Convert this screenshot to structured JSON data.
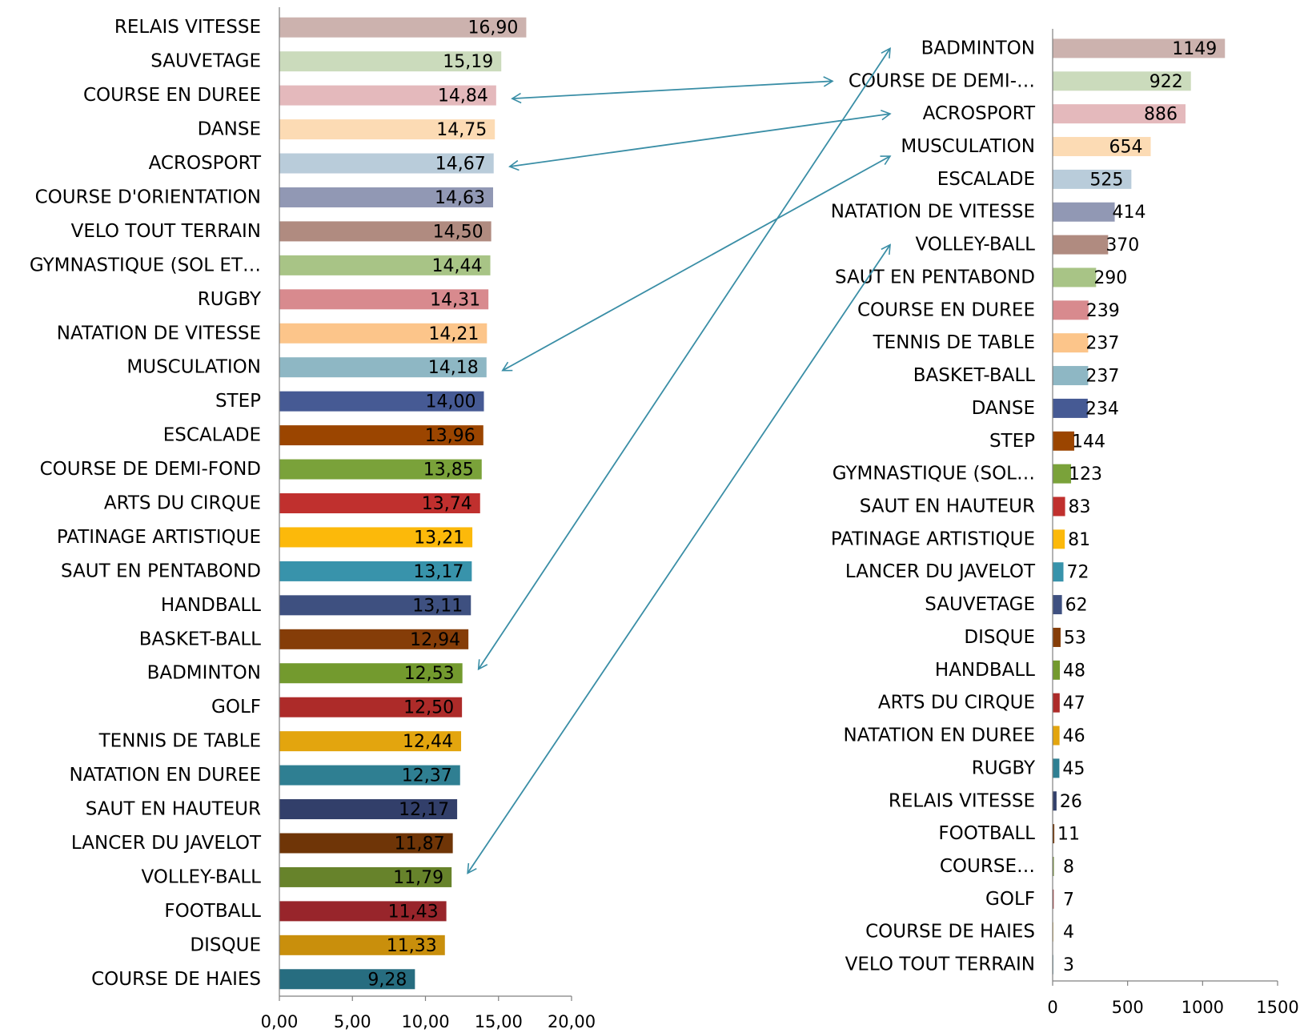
{
  "chart_data": [
    {
      "type": "bar",
      "orientation": "horizontal",
      "categories": [
        "RELAIS VITESSE",
        "SAUVETAGE",
        "COURSE EN DUREE",
        "DANSE",
        "ACROSPORT",
        "COURSE D'ORIENTATION",
        "VELO TOUT TERRAIN",
        "GYMNASTIQUE (SOL ET…",
        "RUGBY",
        "NATATION DE VITESSE",
        "MUSCULATION",
        "STEP",
        "ESCALADE",
        "COURSE DE DEMI-FOND",
        "ARTS DU CIRQUE",
        "PATINAGE ARTISTIQUE",
        "SAUT EN PENTABOND",
        "HANDBALL",
        "BASKET-BALL",
        "BADMINTON",
        "GOLF",
        "TENNIS DE TABLE",
        "NATATION EN DUREE",
        "SAUT EN HAUTEUR",
        "LANCER DU JAVELOT",
        "VOLLEY-BALL",
        "FOOTBALL",
        "DISQUE",
        "COURSE DE HAIES"
      ],
      "values": [
        16.9,
        15.19,
        14.84,
        14.75,
        14.67,
        14.63,
        14.5,
        14.44,
        14.31,
        14.21,
        14.18,
        14.0,
        13.96,
        13.85,
        13.74,
        13.21,
        13.17,
        13.11,
        12.94,
        12.53,
        12.5,
        12.44,
        12.37,
        12.17,
        11.87,
        11.79,
        11.43,
        11.33,
        9.28
      ],
      "data_labels": [
        "16,90",
        "15,19",
        "14,84",
        "14,75",
        "14,67",
        "14,63",
        "14,50",
        "14,44",
        "14,31",
        "14,21",
        "14,18",
        "14,00",
        "13,96",
        "13,85",
        "13,74",
        "13,21",
        "13,17",
        "13,11",
        "12,94",
        "12,53",
        "12,50",
        "12,44",
        "12,37",
        "12,17",
        "11,87",
        "11,79",
        "11,43",
        "11,33",
        "9,28"
      ],
      "colors": [
        "#ccb2ae",
        "#cbdbbc",
        "#e4b9bc",
        "#fcdbb4",
        "#b9ccda",
        "#9198b4",
        "#b08b80",
        "#a8c486",
        "#d88a8e",
        "#fcc58a",
        "#8eb7c4",
        "#465a94",
        "#9b4500",
        "#7aa23a",
        "#c0302e",
        "#fcb90a",
        "#3893ab",
        "#3e5080",
        "#853d08",
        "#739a2e",
        "#ad2b29",
        "#e3a50e",
        "#2f7f92",
        "#323f6a",
        "#6f3507",
        "#67832b",
        "#98252b",
        "#c98f0c",
        "#276d80"
      ],
      "xlim": [
        0,
        20
      ],
      "xticks": [
        "0,00",
        "5,00",
        "10,00",
        "15,00",
        "20,00"
      ],
      "grid": false,
      "legend": "none"
    },
    {
      "type": "bar",
      "orientation": "horizontal",
      "categories": [
        "BADMINTON",
        "COURSE DE DEMI-…",
        "ACROSPORT",
        "MUSCULATION",
        "ESCALADE",
        "NATATION DE VITESSE",
        "VOLLEY-BALL",
        "SAUT EN PENTABOND",
        "COURSE EN DUREE",
        "TENNIS DE TABLE",
        "BASKET-BALL",
        "DANSE",
        "STEP",
        "GYMNASTIQUE (SOL…",
        "SAUT EN HAUTEUR",
        "PATINAGE ARTISTIQUE",
        "LANCER DU JAVELOT",
        "SAUVETAGE",
        "DISQUE",
        "HANDBALL",
        "ARTS DU CIRQUE",
        "NATATION EN DUREE",
        "RUGBY",
        "RELAIS VITESSE",
        "FOOTBALL",
        "COURSE…",
        "GOLF",
        "COURSE DE HAIES",
        "VELO TOUT TERRAIN"
      ],
      "values": [
        1149,
        922,
        886,
        654,
        525,
        414,
        370,
        290,
        239,
        237,
        237,
        234,
        144,
        123,
        83,
        81,
        72,
        62,
        53,
        48,
        47,
        46,
        45,
        26,
        11,
        8,
        7,
        4,
        3
      ],
      "data_labels": [
        "1149",
        "922",
        "886",
        "654",
        "525",
        "414",
        "370",
        "290",
        "239",
        "237",
        "237",
        "234",
        "144",
        "123",
        "83",
        "81",
        "72",
        "62",
        "53",
        "48",
        "47",
        "46",
        "45",
        "26",
        "11",
        "8",
        "7",
        "4",
        "3"
      ],
      "colors": [
        "#ccb2ae",
        "#cbdbbc",
        "#e4b9bc",
        "#fcdbb4",
        "#b9ccda",
        "#9198b4",
        "#b08b80",
        "#a8c486",
        "#d88a8e",
        "#fcc58a",
        "#8eb7c4",
        "#465a94",
        "#9b4500",
        "#7aa23a",
        "#c0302e",
        "#fcb90a",
        "#3893ab",
        "#3e5080",
        "#853d08",
        "#739a2e",
        "#ad2b29",
        "#e3a50e",
        "#2f7f92",
        "#323f6a",
        "#6f3507",
        "#67832b",
        "#98252b",
        "#c98f0c",
        "#276d80"
      ],
      "xlim": [
        0,
        1500
      ],
      "xticks": [
        "0",
        "500",
        "1000",
        "1500"
      ],
      "grid": false,
      "legend": "none"
    }
  ],
  "annotations": {
    "arrow_color": "#3a8ea6",
    "arrows": [
      {
        "from": "COURSE EN DUREE",
        "to": "COURSE DE DEMI-…",
        "style": "double"
      },
      {
        "from": "ACROSPORT",
        "to": "ACROSPORT",
        "style": "double"
      },
      {
        "from": "MUSCULATION",
        "to": "MUSCULATION",
        "style": "double"
      },
      {
        "from": "BADMINTON",
        "to": "BADMINTON",
        "style": "double"
      },
      {
        "from": "VOLLEY-BALL",
        "to": "VOLLEY-BALL",
        "style": "double"
      }
    ]
  }
}
